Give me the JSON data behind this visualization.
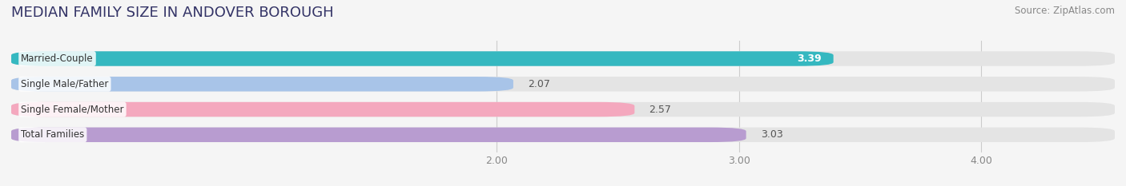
{
  "title": "MEDIAN FAMILY SIZE IN ANDOVER BOROUGH",
  "source": "Source: ZipAtlas.com",
  "categories": [
    "Married-Couple",
    "Single Male/Father",
    "Single Female/Mother",
    "Total Families"
  ],
  "values": [
    3.39,
    2.07,
    2.57,
    3.03
  ],
  "bar_colors": [
    "#35b8c0",
    "#a8c4e8",
    "#f4a8be",
    "#b89cd0"
  ],
  "value_inside": [
    true,
    false,
    false,
    false
  ],
  "value_colors_inside": [
    "#ffffff",
    "#555555",
    "#555555",
    "#555555"
  ],
  "xlim_left": 0.0,
  "xlim_right": 4.55,
  "xstart": 0.0,
  "xticks": [
    2.0,
    3.0,
    4.0
  ],
  "bar_height": 0.58,
  "bg_color": "#f5f5f5",
  "bar_bg_color": "#e4e4e4",
  "title_fontsize": 13,
  "source_fontsize": 8.5,
  "label_fontsize": 8.5,
  "value_fontsize": 9,
  "tick_fontsize": 9,
  "label_bg_alpha": 0.85,
  "rounding_size": 0.15
}
